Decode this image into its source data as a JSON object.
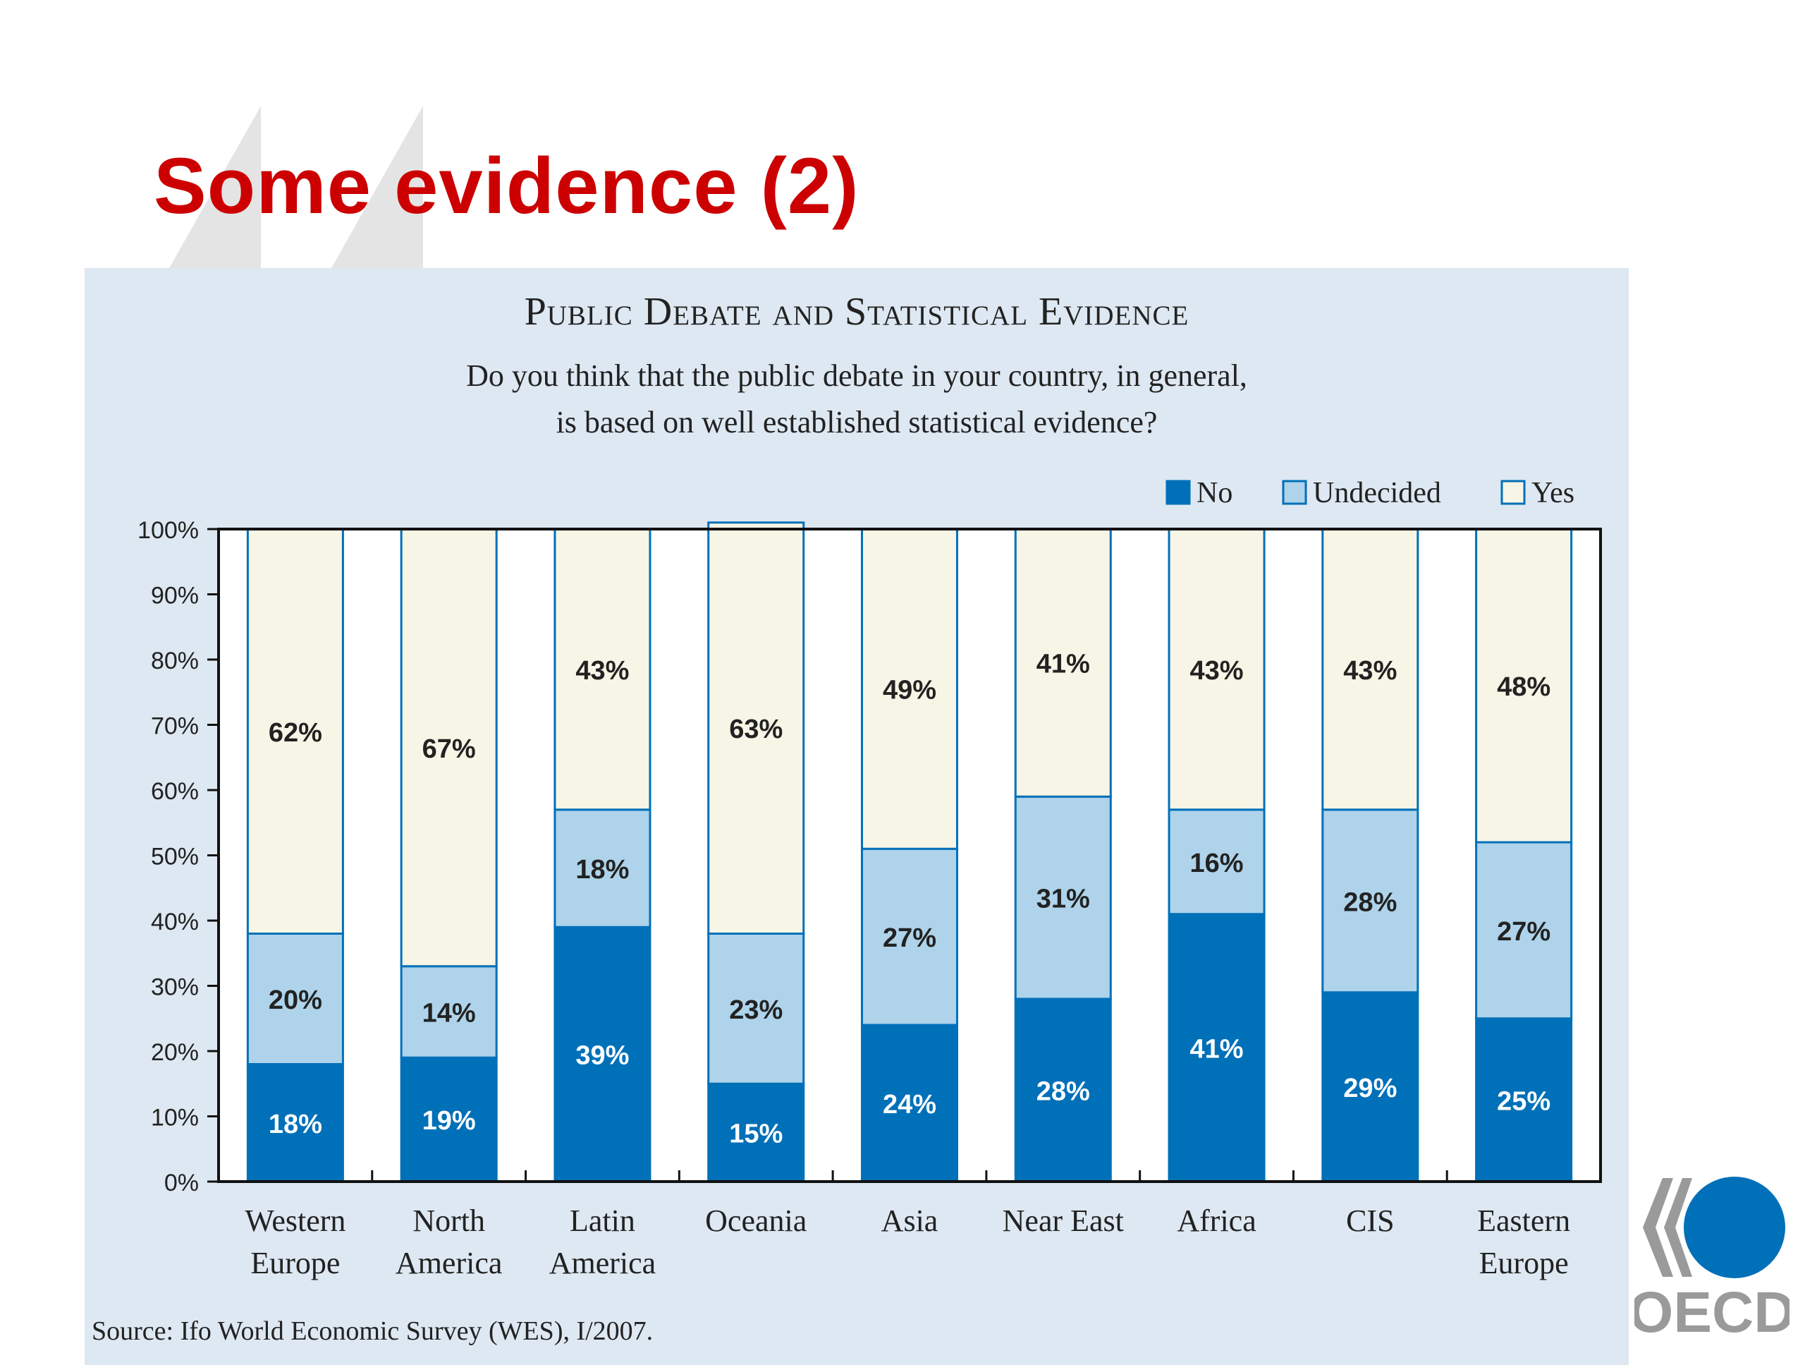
{
  "slide": {
    "title": "Some evidence (2)",
    "accent_color": "#cc0000",
    "logo_text": "OECD"
  },
  "chart_data": {
    "type": "bar",
    "stacked": true,
    "title": "Public Debate and Statistical Evidence",
    "subtitle_lines": [
      "Do you think that the public debate in your country, in general,",
      "is based on well established statistical evidence?"
    ],
    "categories": [
      [
        "Western",
        "Europe"
      ],
      [
        "North",
        "America"
      ],
      [
        "Latin",
        "America"
      ],
      [
        "Oceania"
      ],
      [
        "Asia"
      ],
      [
        "Near East"
      ],
      [
        "Africa"
      ],
      [
        "CIS"
      ],
      [
        "Eastern",
        "Europe"
      ]
    ],
    "series": [
      {
        "name": "No",
        "color": "#0070b8",
        "values": [
          18,
          19,
          39,
          15,
          24,
          28,
          41,
          29,
          25
        ],
        "labels": [
          "18%",
          "19%",
          "39%",
          "15%",
          "24%",
          "28%",
          "41%",
          "29%",
          "25%"
        ]
      },
      {
        "name": "Undecided",
        "color": "#aed3ea",
        "values": [
          20,
          14,
          18,
          23,
          27,
          31,
          16,
          28,
          27
        ],
        "labels": [
          "20%",
          "14%",
          "18%",
          "23%",
          "27%",
          "31%",
          "16%",
          "28%",
          "27%"
        ]
      },
      {
        "name": "Yes",
        "color": "#f7f5e6",
        "values": [
          62,
          67,
          43,
          63,
          49,
          41,
          43,
          43,
          48
        ],
        "labels": [
          "62%",
          "67%",
          "43%",
          "63%",
          "49%",
          "41%",
          "43%",
          "43%",
          "48%"
        ]
      }
    ],
    "ylim": [
      0,
      100
    ],
    "yticks": [
      "0%",
      "10%",
      "20%",
      "30%",
      "40%",
      "50%",
      "60%",
      "70%",
      "80%",
      "90%",
      "100%"
    ],
    "legend_position": "top-right",
    "grid": false,
    "source": "Source: Ifo World Economic Survey (WES), I/2007."
  }
}
